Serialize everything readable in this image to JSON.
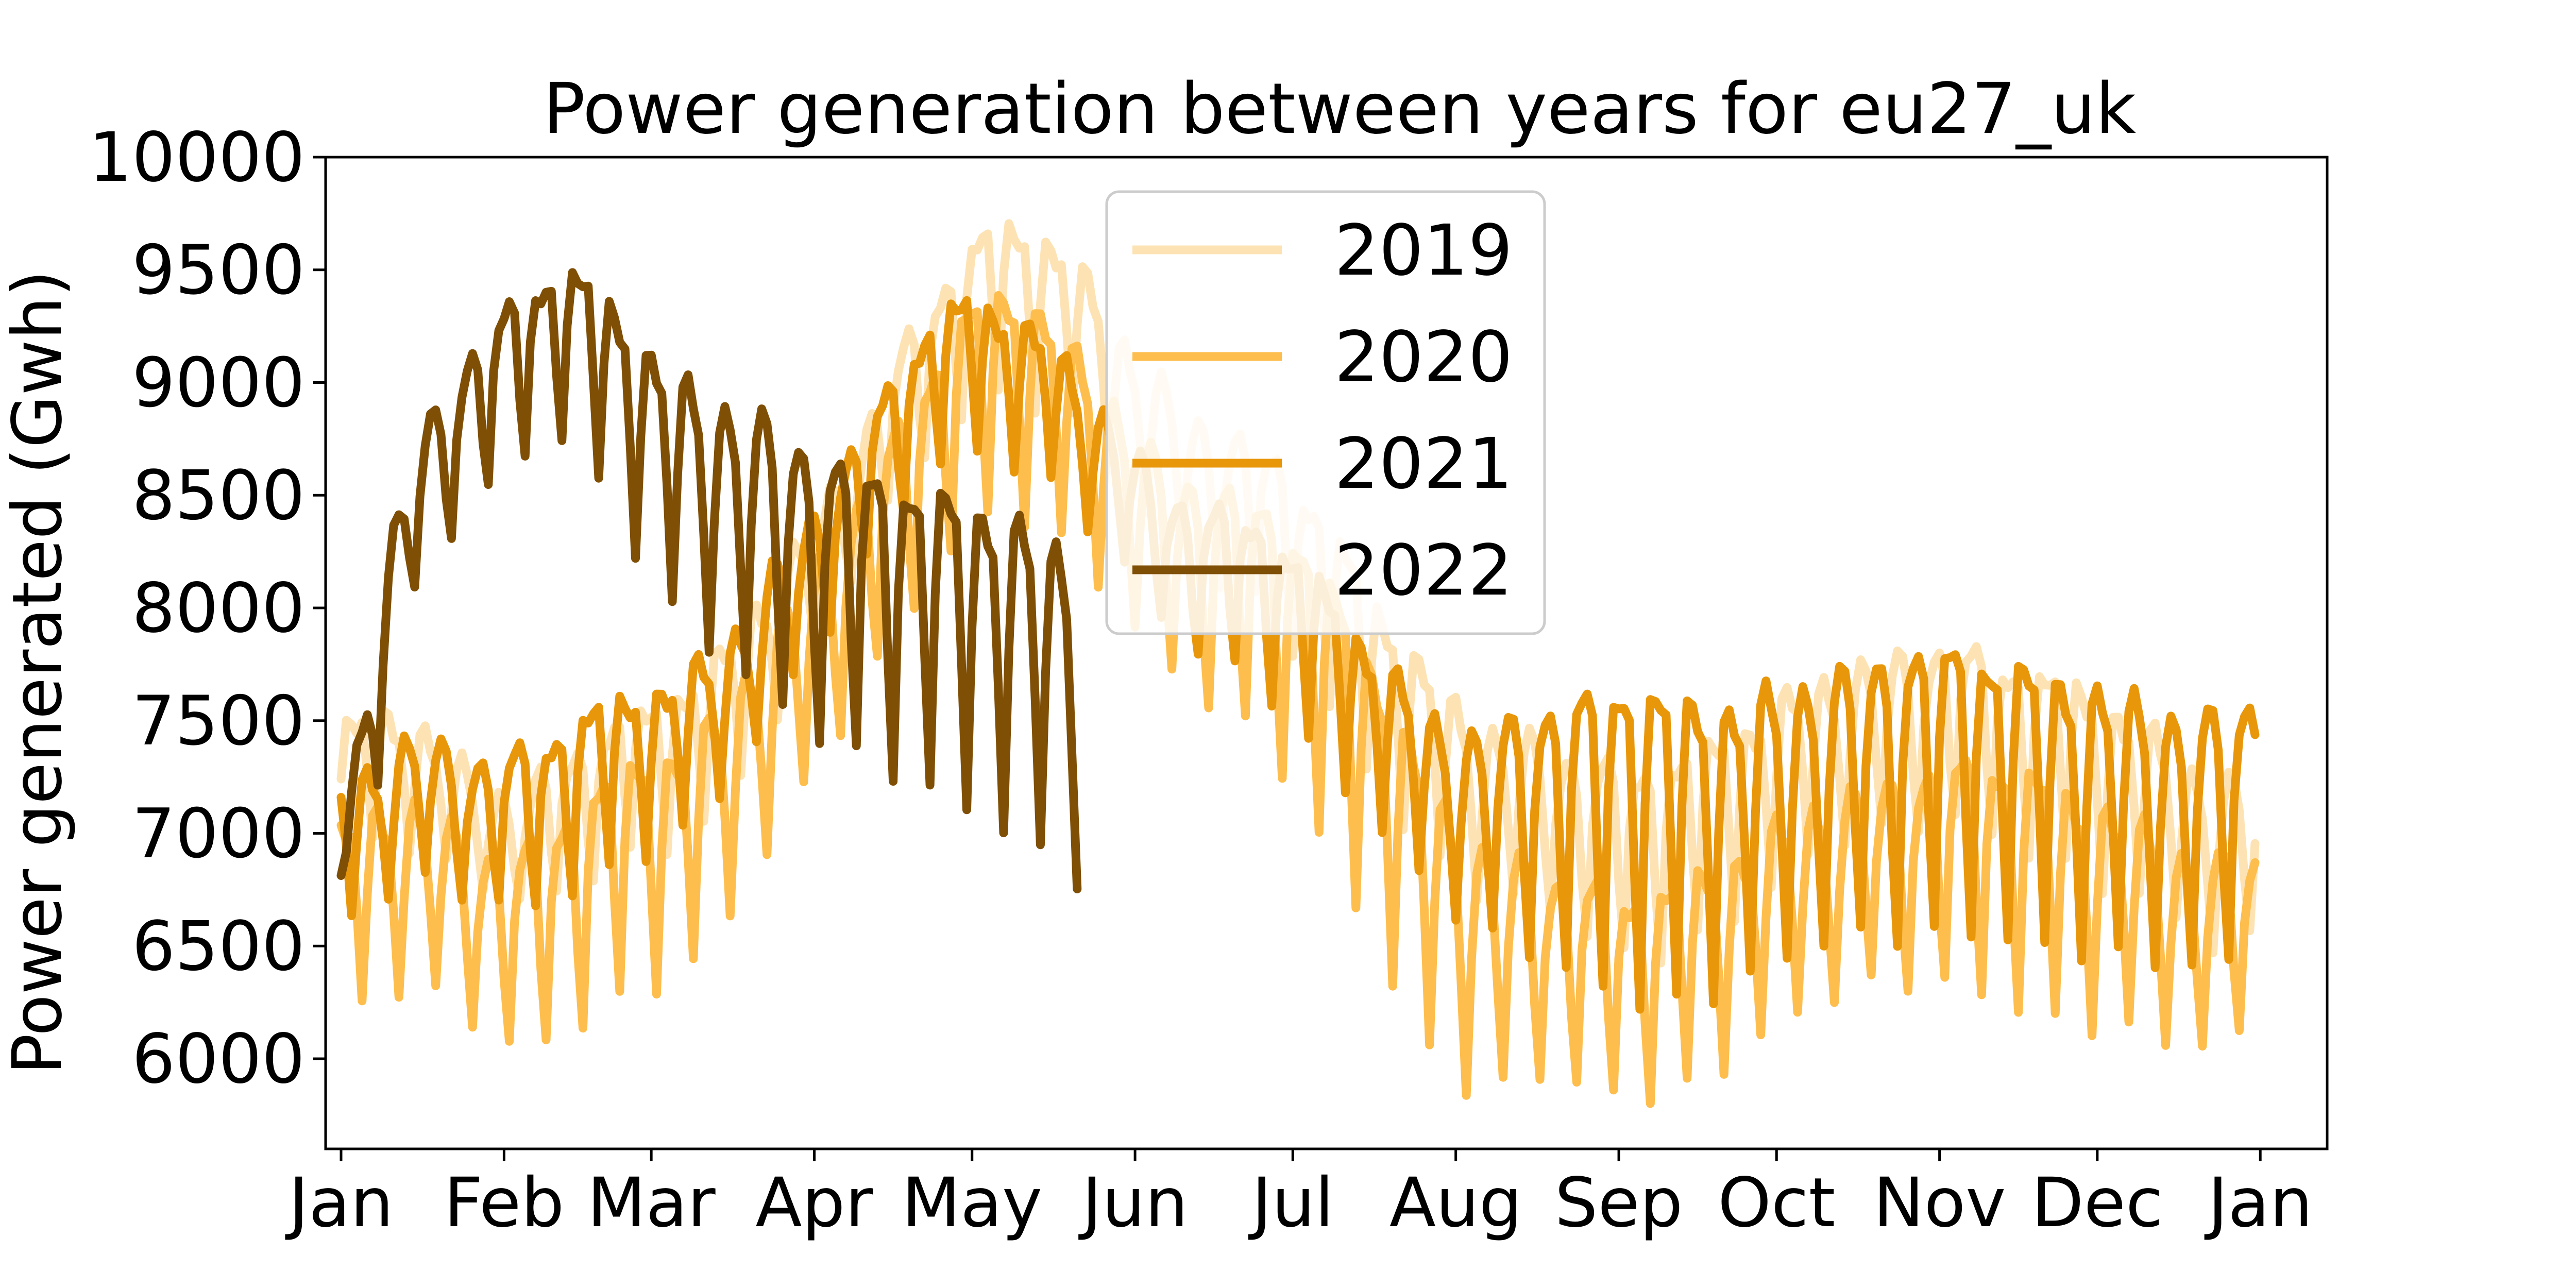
{
  "chart_data": {
    "type": "line",
    "title": "Power generation between years for eu27_uk",
    "xlabel": "",
    "ylabel": "Power generated (Gwh)",
    "xlim": [
      "2000-12-31",
      "2001-12-31"
    ],
    "ylim": [
      5600,
      10000
    ],
    "yticks": [
      6000,
      6500,
      7000,
      7500,
      8000,
      8500,
      9000,
      9500,
      10000
    ],
    "xticks": [
      {
        "date": "2001-01-01",
        "label": "Jan"
      },
      {
        "date": "2001-02-01",
        "label": "Feb"
      },
      {
        "date": "2001-03-01",
        "label": "Mar"
      },
      {
        "date": "2001-04-01",
        "label": "Apr"
      },
      {
        "date": "2001-05-01",
        "label": "May"
      },
      {
        "date": "2001-06-01",
        "label": "Jun"
      },
      {
        "date": "2001-07-01",
        "label": "Jul"
      },
      {
        "date": "2001-08-01",
        "label": "Aug"
      },
      {
        "date": "2001-09-01",
        "label": "Sep"
      },
      {
        "date": "2001-10-01",
        "label": "Oct"
      },
      {
        "date": "2001-11-01",
        "label": "Nov"
      },
      {
        "date": "2001-12-01",
        "label": "Dec"
      },
      {
        "date": "2002-01-01",
        "label": "Jan"
      }
    ],
    "grid": false,
    "legend_position": "top-center",
    "series": [
      {
        "name": "2019",
        "color": "#fde3b4",
        "start": "2001-01-01",
        "end": "2001-12-31",
        "weekday": [
          7450,
          7520,
          7500,
          7300,
          7200,
          7150,
          7320,
          7420,
          7500,
          7600,
          7700,
          7950,
          8150,
          8400,
          8700,
          9050,
          9350,
          9580,
          9700,
          9650,
          9500,
          9250,
          9000,
          8850,
          8750,
          8700,
          8550,
          8300,
          8050,
          7800,
          7600,
          7450,
          7400,
          7350,
          7300,
          7250,
          7300,
          7350,
          7450,
          7550,
          7650,
          7700,
          7750,
          7800,
          7800,
          7750,
          7700,
          7650,
          7550,
          7450,
          7300,
          7200,
          7200,
          7400,
          7650,
          7950,
          8200,
          8450,
          8700,
          8950,
          9000,
          8950,
          8800,
          7700,
          7900
        ],
        "weekend": [
          6900,
          7000,
          6950,
          6800,
          6700,
          6650,
          6700,
          6850,
          6950,
          7000,
          7100,
          7300,
          7550,
          7800,
          8150,
          8450,
          8700,
          8900,
          9000,
          8950,
          8850,
          8600,
          8350,
          8200,
          8050,
          8000,
          7800,
          7550,
          7300,
          7050,
          6850,
          6700,
          6650,
          6600,
          6500,
          6450,
          6500,
          6600,
          6700,
          6800,
          6900,
          6950,
          6950,
          7000,
          7050,
          7000,
          6950,
          6900,
          6800,
          6700,
          6600,
          6400,
          6500,
          6700,
          6950,
          7250,
          7500,
          7750,
          8000,
          8200,
          8300,
          8250,
          8050,
          6800,
          7200
        ],
        "amp": 0.5
      },
      {
        "name": "2020",
        "color": "#fdbe4e",
        "start": "2001-01-01",
        "end": "2001-12-31",
        "weekday": [
          7000,
          7100,
          7100,
          7000,
          6900,
          6900,
          7050,
          7200,
          7300,
          7350,
          7450,
          7700,
          7950,
          8200,
          8450,
          8750,
          9050,
          9300,
          9400,
          9300,
          9100,
          8900,
          8650,
          8550,
          8500,
          8450,
          8300,
          8050,
          7750,
          7400,
          7100,
          6900,
          6850,
          6800,
          6750,
          6700,
          6750,
          6800,
          6900,
          7000,
          7100,
          7150,
          7200,
          7250,
          7300,
          7300,
          7250,
          7150,
          7100,
          7000,
          6900,
          6850,
          6900,
          7150,
          7450,
          7750,
          8000,
          8200,
          8400,
          8600,
          8650,
          8600,
          8450,
          7400,
          7600
        ],
        "weekend": [
          6200,
          6300,
          6300,
          6200,
          6050,
          6000,
          6100,
          6250,
          6350,
          6400,
          6500,
          6750,
          7000,
          7250,
          7550,
          7850,
          8150,
          8400,
          8500,
          8400,
          8250,
          8000,
          7750,
          7600,
          7500,
          7450,
          7200,
          6900,
          6600,
          6200,
          5900,
          5800,
          5850,
          5900,
          5850,
          5850,
          5900,
          5950,
          6050,
          6150,
          6200,
          6250,
          6300,
          6300,
          6350,
          6300,
          6250,
          6200,
          6150,
          6100,
          6000,
          6000,
          6100,
          6350,
          6650,
          6950,
          7200,
          7450,
          7650,
          7850,
          7900,
          7850,
          7700,
          6800,
          7050
        ],
        "amp": 0.5
      },
      {
        "name": "2021",
        "color": "#e8960a",
        "start": "2001-01-01",
        "end": "2001-12-31",
        "weekday": [
          7200,
          7300,
          7400,
          7350,
          7300,
          7350,
          7450,
          7550,
          7600,
          7650,
          7750,
          7950,
          8200,
          8450,
          8700,
          9000,
          9250,
          9350,
          9300,
          9200,
          9000,
          8800,
          8550,
          8450,
          8400,
          8350,
          8200,
          8000,
          7800,
          7600,
          7450,
          7400,
          7500,
          7550,
          7600,
          7650,
          7600,
          7550,
          7550,
          7600,
          7650,
          7700,
          7750,
          7800,
          7800,
          7750,
          7700,
          7650,
          7600,
          7550,
          7500,
          7500,
          7600,
          7850,
          8100,
          8400,
          8700,
          8950,
          9150,
          9300,
          9300,
          9200,
          9000,
          7800,
          7400
        ],
        "weekend": [
          6600,
          6700,
          6750,
          6700,
          6650,
          6650,
          6750,
          6850,
          6950,
          7000,
          7100,
          7300,
          7550,
          7800,
          8100,
          8400,
          8650,
          8750,
          8700,
          8600,
          8400,
          8200,
          7950,
          7800,
          7750,
          7700,
          7500,
          7300,
          7100,
          6850,
          6650,
          6500,
          6450,
          6400,
          6350,
          6300,
          6300,
          6300,
          6350,
          6400,
          6450,
          6500,
          6500,
          6550,
          6600,
          6600,
          6550,
          6500,
          6450,
          6400,
          6350,
          6350,
          6500,
          6750,
          7000,
          7300,
          7550,
          7800,
          8000,
          8200,
          8200,
          8100,
          7900,
          7200,
          7000
        ],
        "amp": 0.5
      },
      {
        "name": "2022",
        "color": "#7f4f06",
        "start": "2001-01-01",
        "end": "2001-05-21",
        "weekday": [
          6900,
          8000,
          8700,
          9000,
          9200,
          9400,
          9500,
          9400,
          9200,
          9000,
          8900,
          8850,
          8750,
          8650,
          8600,
          8550,
          8500,
          8450,
          8400,
          8300,
          8150,
          8000,
          7850,
          7700,
          7500,
          7350,
          7300,
          7250,
          7200
        ],
        "weekend": [
          6800,
          7200,
          8000,
          8300,
          8500,
          8700,
          8800,
          8600,
          8300,
          8000,
          7800,
          7650,
          7500,
          7400,
          7350,
          7300,
          7250,
          7150,
          7050,
          6900,
          6750,
          6600,
          6500,
          6400,
          6250,
          6200,
          6250,
          6200,
          6200
        ],
        "amp": 0.45
      }
    ]
  }
}
